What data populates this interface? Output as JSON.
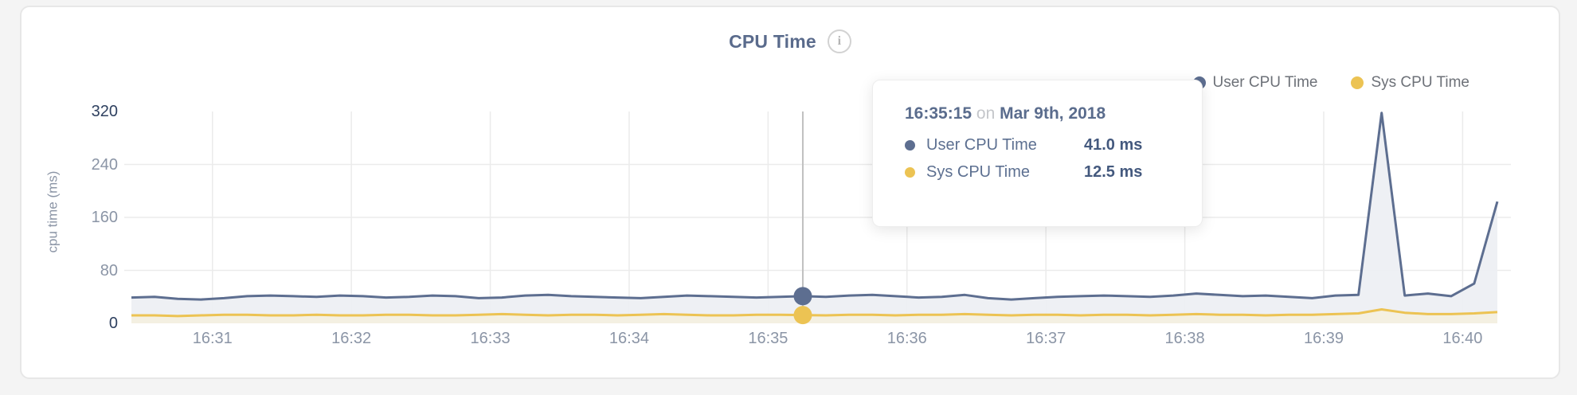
{
  "page": {
    "background": "#f4f4f4"
  },
  "card": {
    "title": "CPU Time",
    "info_icon": "i"
  },
  "legend": {
    "items": [
      {
        "label": "User CPU Time",
        "color": "#5d6e90"
      },
      {
        "label": "Sys CPU Time",
        "color": "#ecc353"
      }
    ]
  },
  "tooltip": {
    "time": "16:35:15",
    "conjunction": "on",
    "date": "Mar 9th, 2018",
    "rows": [
      {
        "label": "User CPU Time",
        "value": "41.0 ms",
        "color": "#5d6e90"
      },
      {
        "label": "Sys CPU Time",
        "value": "12.5 ms",
        "color": "#ecc353"
      }
    ]
  },
  "chart_data": {
    "type": "area",
    "title": "CPU Time",
    "xlabel": "",
    "ylabel": "cpu time (ms)",
    "ylim": [
      0,
      320
    ],
    "y_ticks": [
      0,
      80,
      160,
      240,
      320
    ],
    "y_tick_emphasized": [
      0,
      320
    ],
    "x_tick_labels": [
      "16:31",
      "16:32",
      "16:33",
      "16:34",
      "16:35",
      "16:36",
      "16:37",
      "16:38",
      "16:39",
      "16:40"
    ],
    "sample_start": "16:30:25",
    "sample_interval_seconds": 10,
    "grid": true,
    "legend_position": "top-right",
    "colors": {
      "grid": "#ebebeb",
      "crosshair": "#c0c0c0",
      "user_line": "#5d6e90",
      "user_fill": "#edeff3",
      "sys_line": "#ecc353",
      "sys_fill": "#f4f0e2"
    },
    "series": [
      {
        "name": "User CPU Time",
        "color": "#5d6e90",
        "fill": "#edeff3",
        "values": [
          39,
          40,
          37,
          36,
          38,
          41,
          42,
          41,
          40,
          42,
          41,
          39,
          40,
          42,
          41,
          38,
          39,
          42,
          43,
          41,
          40,
          39,
          38,
          40,
          42,
          41,
          40,
          39,
          40,
          41,
          40,
          42,
          43,
          41,
          39,
          40,
          43,
          38,
          36,
          38,
          40,
          41,
          42,
          41,
          40,
          42,
          45,
          43,
          41,
          42,
          40,
          38,
          42,
          43,
          318,
          42,
          45,
          41,
          60,
          184
        ]
      },
      {
        "name": "Sys CPU Time",
        "color": "#ecc353",
        "fill": "#f4f0e2",
        "values": [
          12,
          12,
          11,
          12,
          13,
          13,
          12,
          12,
          13,
          12,
          12,
          13,
          13,
          12,
          12,
          13,
          14,
          13,
          12,
          13,
          13,
          12,
          13,
          14,
          13,
          12,
          12,
          13,
          13,
          12.5,
          12,
          13,
          13,
          12,
          13,
          13,
          14,
          13,
          12,
          13,
          13,
          12,
          13,
          13,
          12,
          13,
          14,
          13,
          13,
          12,
          13,
          13,
          14,
          15,
          21,
          16,
          14,
          14,
          15,
          17
        ]
      }
    ],
    "highlight": {
      "index": 29,
      "time": "16:35:15",
      "date": "Mar 9th, 2018",
      "values": {
        "User CPU Time": 41.0,
        "Sys CPU Time": 12.5
      }
    }
  }
}
